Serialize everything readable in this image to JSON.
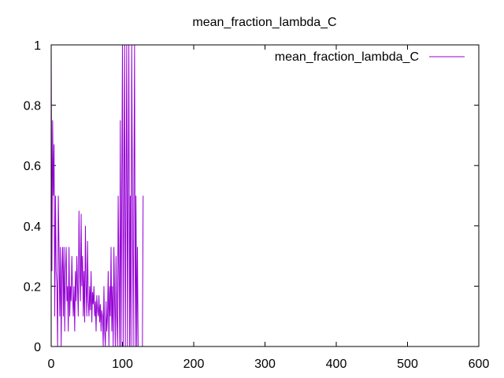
{
  "chart_data": {
    "type": "line",
    "title": "mean_fraction_lambda_C",
    "xlabel": "",
    "ylabel": "",
    "xlim": [
      0,
      600
    ],
    "ylim": [
      0,
      1
    ],
    "x_ticks": [
      0,
      100,
      200,
      300,
      400,
      500,
      600
    ],
    "y_ticks": [
      0,
      0.2,
      0.4,
      0.6,
      0.8,
      1
    ],
    "x_tick_labels": [
      "0",
      "100",
      "200",
      "300",
      "400",
      "500",
      "600"
    ],
    "y_tick_labels": [
      "0",
      "0.2",
      "0.4",
      "0.6",
      "0.8",
      "1"
    ],
    "grid": false,
    "legend_position": "top-right",
    "series": [
      {
        "name": "mean_fraction_lambda_C",
        "color": "#9400d3",
        "x": [
          0,
          1,
          2,
          3,
          4,
          5,
          6,
          7,
          8,
          9,
          10,
          11,
          12,
          13,
          14,
          15,
          16,
          17,
          18,
          19,
          20,
          21,
          22,
          23,
          24,
          25,
          26,
          27,
          28,
          29,
          30,
          31,
          32,
          33,
          34,
          35,
          36,
          37,
          38,
          39,
          40,
          41,
          42,
          43,
          44,
          45,
          46,
          47,
          48,
          49,
          50,
          51,
          52,
          53,
          54,
          55,
          56,
          57,
          58,
          59,
          60,
          61,
          62,
          63,
          64,
          65,
          66,
          67,
          68,
          69,
          70,
          71,
          72,
          73,
          74,
          75,
          76,
          77,
          78,
          79,
          80,
          81,
          82,
          83,
          84,
          85,
          86,
          87,
          88,
          89,
          90,
          91,
          92,
          93,
          94,
          95,
          96,
          97,
          98,
          99,
          100,
          101,
          102,
          103,
          104,
          105,
          106,
          107,
          108,
          109,
          110,
          111,
          112,
          113,
          114,
          115,
          116,
          117,
          118,
          119,
          120,
          121,
          122,
          123,
          124,
          125,
          126,
          127,
          128,
          129
        ],
        "y": [
          1,
          0.25,
          0.75,
          0.5,
          0.67,
          0.1,
          0.5,
          0.25,
          0.2,
          0,
          0.5,
          0.33,
          0.1,
          0.33,
          0,
          0.25,
          0.33,
          0.1,
          0.33,
          0.05,
          0.25,
          0.33,
          0.15,
          0.2,
          0.05,
          0.33,
          0.1,
          0.2,
          0.15,
          0.3,
          0.18,
          0.1,
          0.2,
          0.05,
          0.25,
          0.15,
          0.3,
          0.2,
          0.1,
          0.45,
          0.25,
          0.15,
          0.44,
          0.2,
          0.3,
          0.1,
          0.25,
          0.08,
          0.4,
          0.2,
          0.1,
          0.35,
          0.15,
          0.1,
          0.2,
          0.12,
          0.25,
          0.08,
          0.18,
          0.14,
          0.2,
          0.1,
          0.15,
          0.05,
          0.17,
          0.12,
          0.1,
          0.17,
          0.08,
          0.14,
          0.05,
          0.12,
          0.1,
          0,
          0.2,
          0.05,
          0,
          0.15,
          0.05,
          0.1,
          0.25,
          0,
          0.2,
          0.1,
          0.33,
          0.05,
          0.2,
          0,
          0.33,
          0.15,
          0,
          0.3,
          0.1,
          0,
          0.5,
          0.25,
          0,
          0.75,
          0,
          0.5,
          1,
          0,
          0.5,
          1,
          0,
          0.5,
          1,
          0,
          0.5,
          1,
          0,
          0.5,
          0,
          1,
          0.5,
          0,
          0.5,
          1,
          0,
          0.5,
          0,
          0.33,
          0,
          0,
          0,
          0,
          0,
          0,
          0,
          0.5
        ]
      }
    ]
  }
}
